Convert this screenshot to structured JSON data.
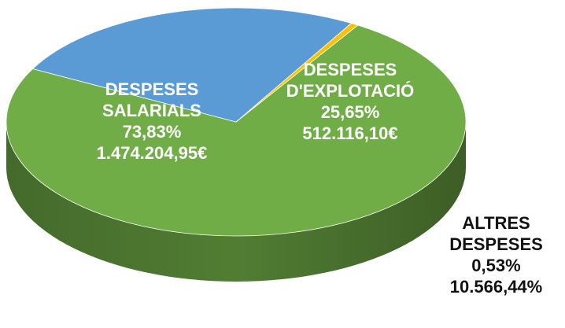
{
  "chart_data": {
    "type": "pie",
    "title": "",
    "slices": [
      {
        "name": "DESPESES SALARIALS",
        "lines": [
          "DESPESES",
          "SALARIALS"
        ],
        "percent": 73.83,
        "percent_label": "73,83%",
        "amount_label": "1.474.204,95€",
        "color": "#70ad47"
      },
      {
        "name": "DESPESES D'EXPLOTACIÓ",
        "lines": [
          "DESPESES",
          "D'EXPLOTACIÓ"
        ],
        "percent": 25.65,
        "percent_label": "25,65%",
        "amount_label": "512.116,10€",
        "color": "#5b9bd5"
      },
      {
        "name": "ALTRES DESPESES",
        "lines": [
          "ALTRES",
          "DESPESES"
        ],
        "percent": 0.53,
        "percent_label": "0,53%",
        "amount_label": "10.566,44%",
        "color": "#ffc000"
      }
    ]
  }
}
